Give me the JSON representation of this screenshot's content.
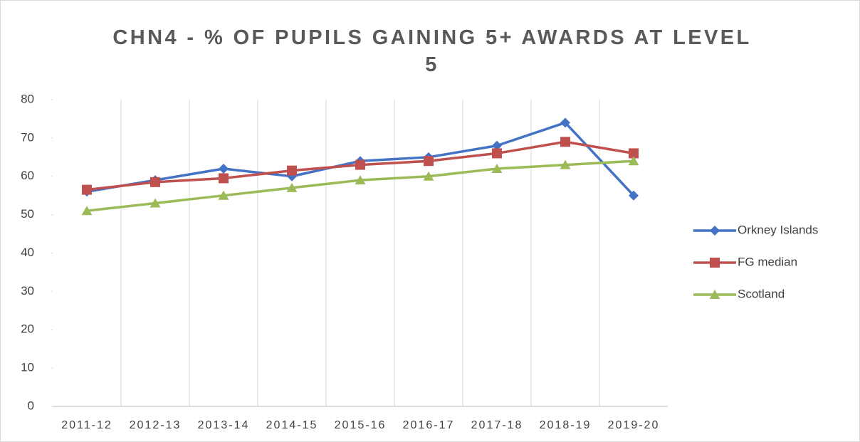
{
  "chart_data": {
    "type": "line",
    "title": "CHN4 - % OF PUPILS GAINING 5+ AWARDS AT LEVEL 5",
    "categories": [
      "2011-12",
      "2012-13",
      "2013-14",
      "2014-15",
      "2015-16",
      "2016-17",
      "2017-18",
      "2018-19",
      "2019-20"
    ],
    "series": [
      {
        "name": "Orkney Islands",
        "color": "#4472c4",
        "marker": "diamond",
        "values": [
          56,
          59,
          62,
          60,
          64,
          65,
          68,
          74,
          55
        ]
      },
      {
        "name": "FG median",
        "color": "#c0504d",
        "marker": "square",
        "values": [
          56.5,
          58.5,
          59.5,
          61.5,
          63,
          64,
          66,
          69,
          66
        ]
      },
      {
        "name": "Scotland",
        "color": "#9bbb59",
        "marker": "triangle",
        "values": [
          51,
          53,
          55,
          57,
          59,
          60,
          62,
          63,
          64
        ]
      }
    ],
    "ylim": [
      0,
      80
    ],
    "yticks": [
      0,
      10,
      20,
      30,
      40,
      50,
      60,
      70,
      80
    ],
    "legend": "right"
  }
}
